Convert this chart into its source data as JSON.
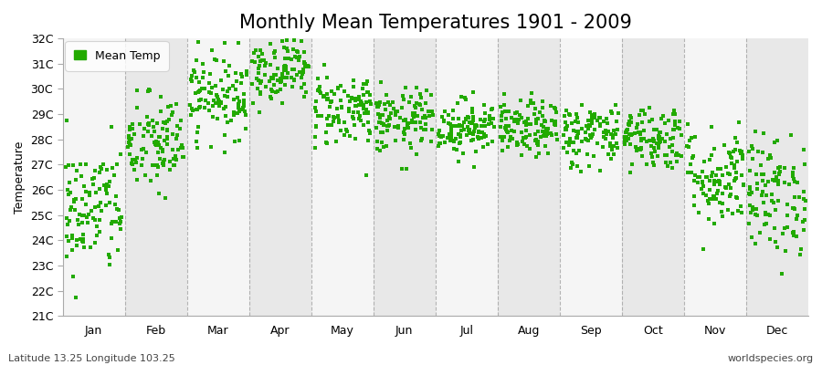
{
  "title": "Monthly Mean Temperatures 1901 - 2009",
  "ylabel": "Temperature",
  "footer_left": "Latitude 13.25 Longitude 103.25",
  "footer_right": "worldspecies.org",
  "legend_label": "Mean Temp",
  "ylim": [
    21,
    32
  ],
  "yticks": [
    21,
    22,
    23,
    24,
    25,
    26,
    27,
    28,
    29,
    30,
    31,
    32
  ],
  "ytick_labels": [
    "21C",
    "22C",
    "23C",
    "24C",
    "25C",
    "26C",
    "27C",
    "28C",
    "29C",
    "30C",
    "31C",
    "32C"
  ],
  "months": [
    "Jan",
    "Feb",
    "Mar",
    "Apr",
    "May",
    "Jun",
    "Jul",
    "Aug",
    "Sep",
    "Oct",
    "Nov",
    "Dec"
  ],
  "month_means": [
    25.2,
    27.8,
    29.8,
    30.8,
    29.2,
    28.7,
    28.5,
    28.4,
    28.2,
    28.1,
    26.5,
    25.8
  ],
  "month_stds": [
    1.3,
    1.0,
    0.85,
    0.65,
    0.75,
    0.65,
    0.55,
    0.55,
    0.65,
    0.65,
    1.0,
    1.2
  ],
  "n_years": 109,
  "marker_color": "#22aa00",
  "marker_size": 5,
  "bg_color": "#ffffff",
  "plot_bg": "#f0f0f0",
  "band_color_light": "#f5f5f5",
  "band_color_dark": "#e8e8e8",
  "grid_color": "#999999",
  "title_fontsize": 15,
  "axis_fontsize": 9,
  "tick_fontsize": 9,
  "footer_fontsize": 8
}
